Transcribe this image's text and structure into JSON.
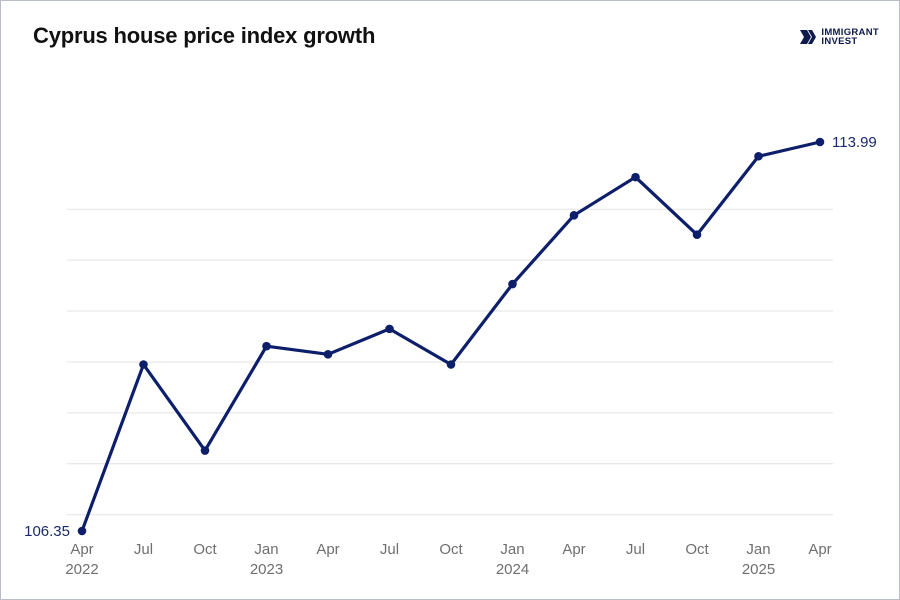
{
  "header": {
    "title": "Cyprus house price index growth",
    "logo": {
      "line1": "IMMIGRANT",
      "line2": "INVEST",
      "icon": "immigrant-invest-logo-icon"
    }
  },
  "colors": {
    "series": "#0d1f6b",
    "grid": "#e3e3e3",
    "tick": "#6f6f6f",
    "label": "#1a2a6c"
  },
  "chart_data": {
    "type": "line",
    "title": "Cyprus house price index growth",
    "categories": [
      "Apr 2022",
      "Jul",
      "Oct",
      "Jan 2023",
      "Apr",
      "Jul",
      "Oct",
      "Jan 2024",
      "Apr",
      "Jul",
      "Oct",
      "Jan 2025",
      "Apr"
    ],
    "tick_labels": [
      [
        "Apr",
        "2022"
      ],
      [
        "Jul",
        ""
      ],
      [
        "Oct",
        ""
      ],
      [
        "Jan",
        "2023"
      ],
      [
        "Apr",
        ""
      ],
      [
        "Jul",
        ""
      ],
      [
        "Oct",
        ""
      ],
      [
        "Jan",
        "2024"
      ],
      [
        "Apr",
        ""
      ],
      [
        "Jul",
        ""
      ],
      [
        "Oct",
        ""
      ],
      [
        "Jan",
        "2025"
      ],
      [
        "Apr",
        ""
      ]
    ],
    "series": [
      {
        "name": "House price index",
        "values": [
          106.35,
          109.62,
          107.93,
          109.98,
          109.82,
          110.32,
          109.62,
          111.2,
          112.55,
          113.3,
          112.17,
          113.71,
          113.99
        ]
      }
    ],
    "labeled_points": [
      {
        "index": 0,
        "text": "106.35",
        "side": "left"
      },
      {
        "index": 12,
        "text": "113.99",
        "side": "right"
      }
    ],
    "ylim": [
      106.0,
      114.0
    ],
    "gridlines": [
      106.67,
      107.67,
      108.67,
      109.67,
      110.67,
      111.67,
      112.67
    ],
    "xlabel": "",
    "ylabel": "",
    "grid": true
  }
}
